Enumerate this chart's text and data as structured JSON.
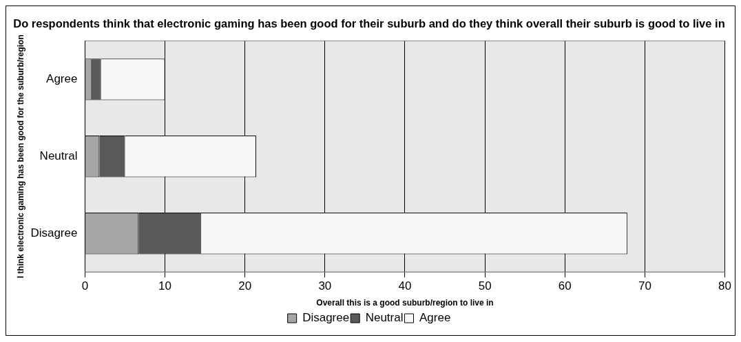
{
  "chart_data": {
    "type": "bar",
    "orientation": "horizontal",
    "stacked": true,
    "title": "Do respondents think that electronic gaming has been good for their suburb and do they think overall their suburb is good to live in",
    "xlabel": "Overall this is a good suburb/region to live in",
    "ylabel": "I think electronic gaming has been good for the suburb/region",
    "categories": [
      "Agree",
      "Neutral",
      "Disagree"
    ],
    "series": [
      {
        "name": "Disagree",
        "color": "#a6a6a6",
        "values": [
          0.8,
          1.8,
          6.7
        ]
      },
      {
        "name": "Neutral",
        "color": "#595959",
        "values": [
          1.2,
          3.2,
          7.8
        ]
      },
      {
        "name": "Agree",
        "color": "#f8f8f8",
        "values": [
          8.0,
          16.4,
          53.3
        ]
      }
    ],
    "xlim": [
      0,
      80
    ],
    "xticks": [
      0,
      10,
      20,
      30,
      40,
      50,
      60,
      70,
      80
    ],
    "grid": "x",
    "legend": "bottom"
  }
}
